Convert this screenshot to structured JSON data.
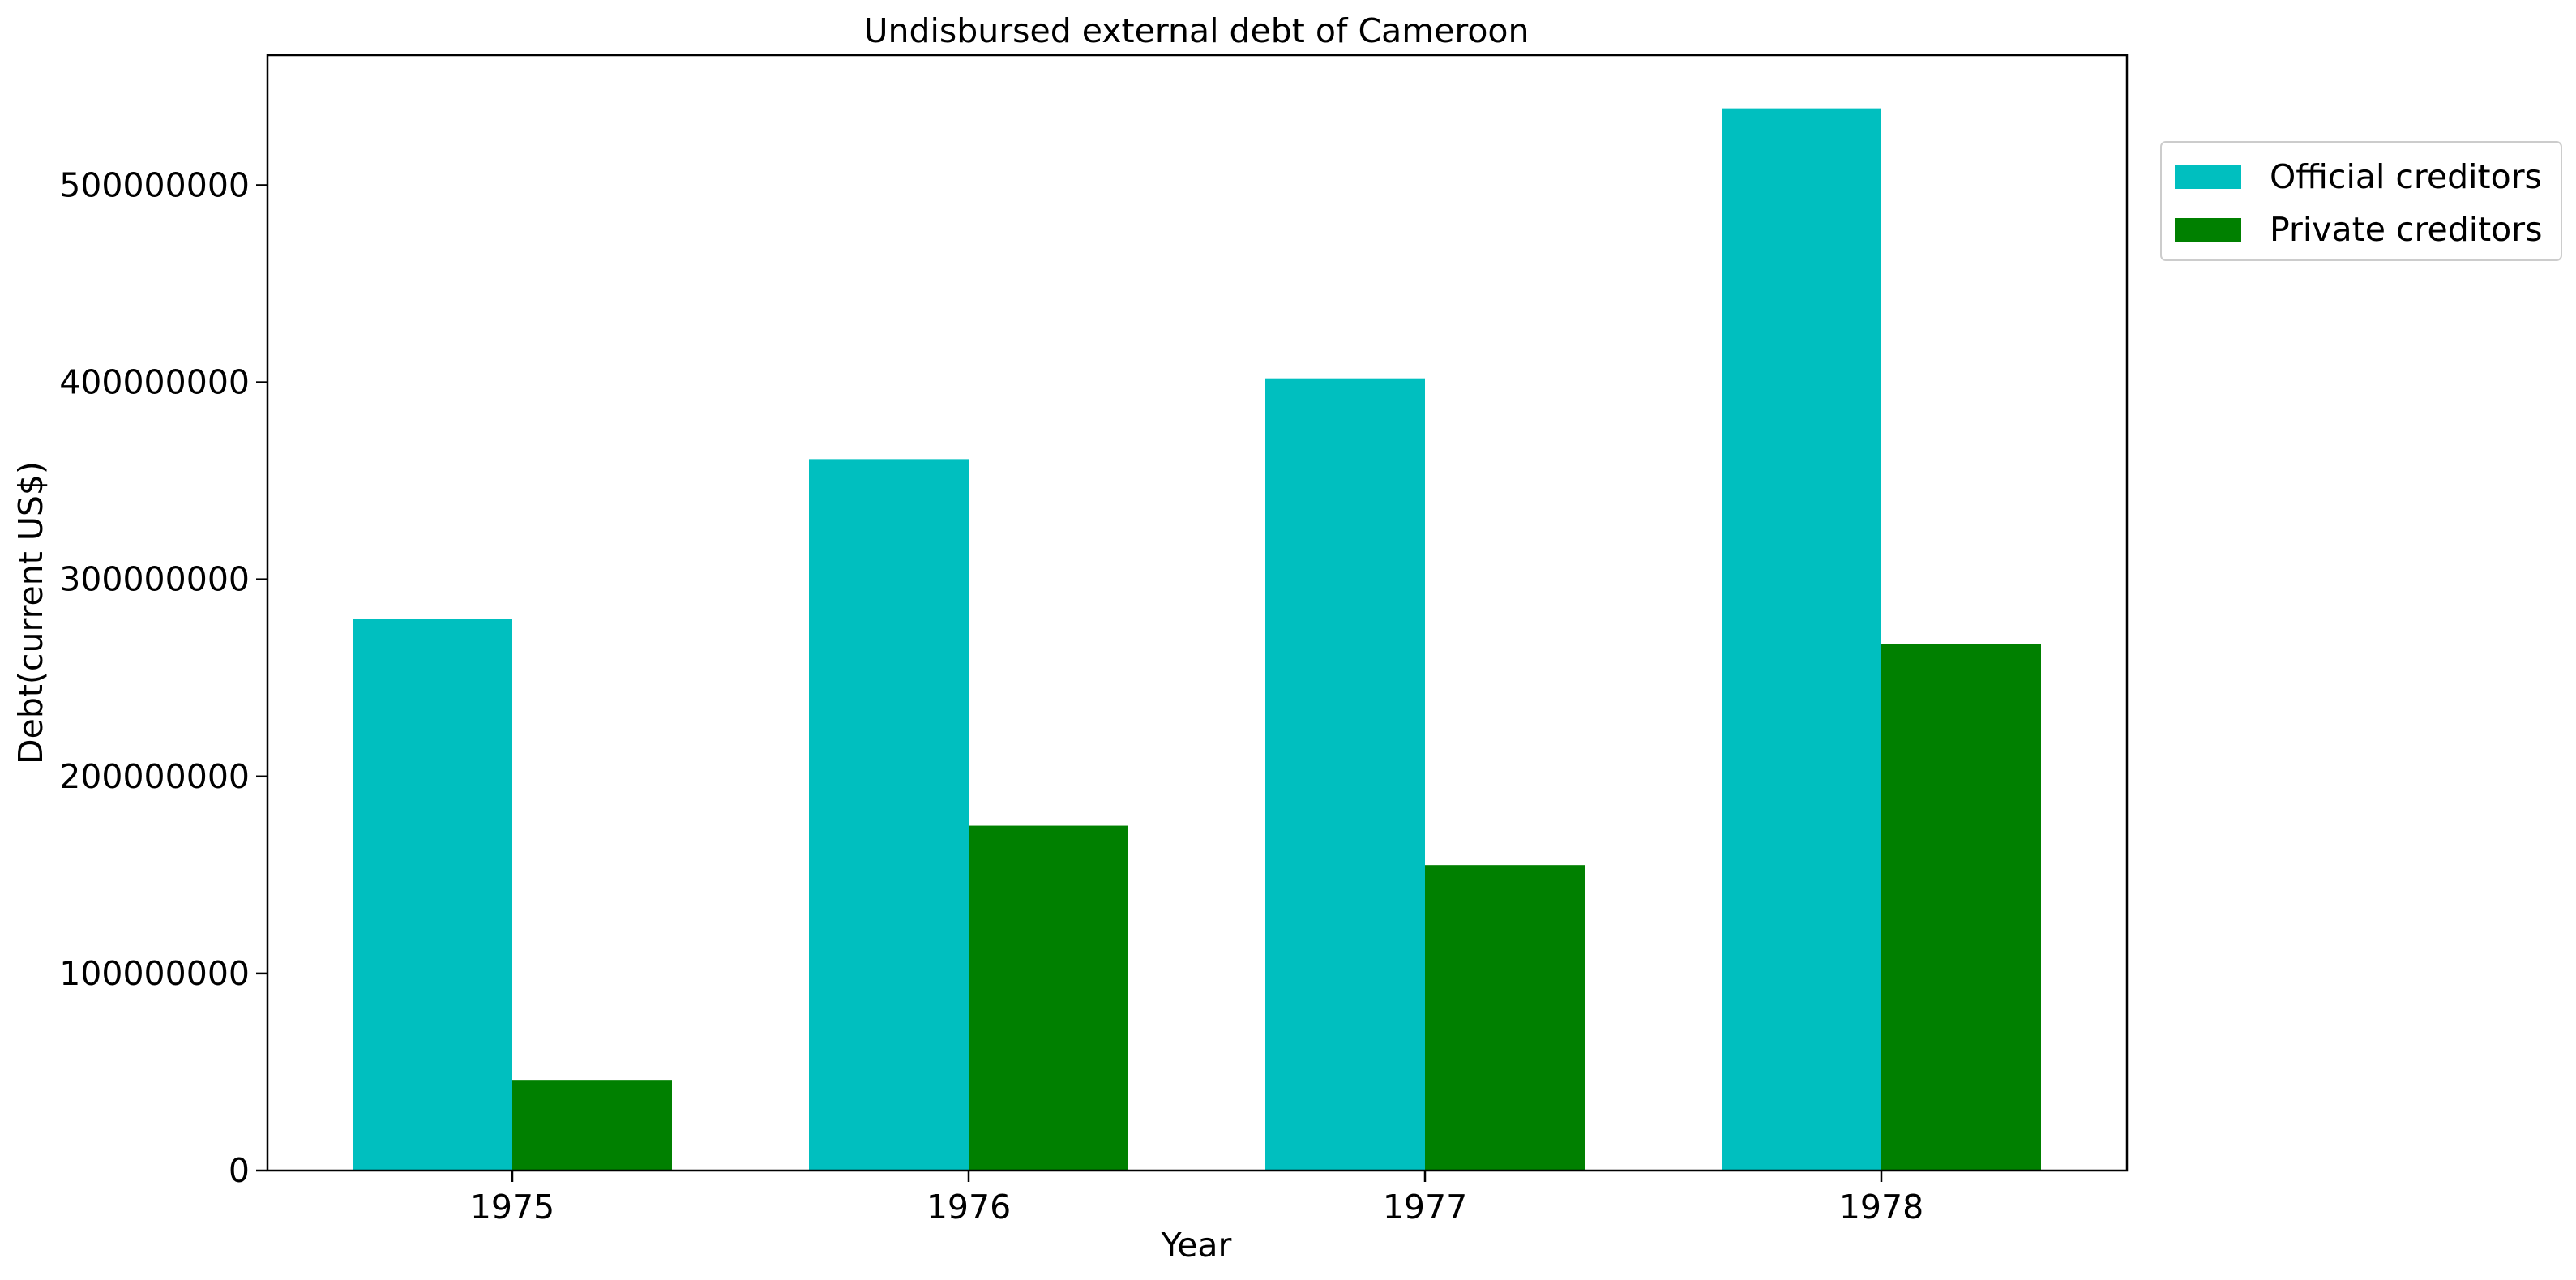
{
  "chart_data": {
    "type": "bar",
    "title": "Undisbursed external debt of Cameroon",
    "xlabel": "Year",
    "ylabel": "Debt(current US$)",
    "categories": [
      "1975",
      "1976",
      "1977",
      "1978"
    ],
    "series": [
      {
        "name": "Official creditors",
        "color": "#00bfbf",
        "values": [
          280000000,
          361000000,
          402000000,
          539000000
        ]
      },
      {
        "name": "Private creditors",
        "color": "#008000",
        "values": [
          46000000,
          175000000,
          155000000,
          267000000
        ]
      }
    ],
    "ylim": [
      0,
      566000000
    ],
    "yticks": [
      0,
      100000000,
      200000000,
      300000000,
      400000000,
      500000000
    ],
    "ytick_labels": [
      "0",
      "100000000",
      "200000000",
      "300000000",
      "400000000",
      "500000000"
    ],
    "grid": false,
    "legend": "upper-right-outside"
  }
}
